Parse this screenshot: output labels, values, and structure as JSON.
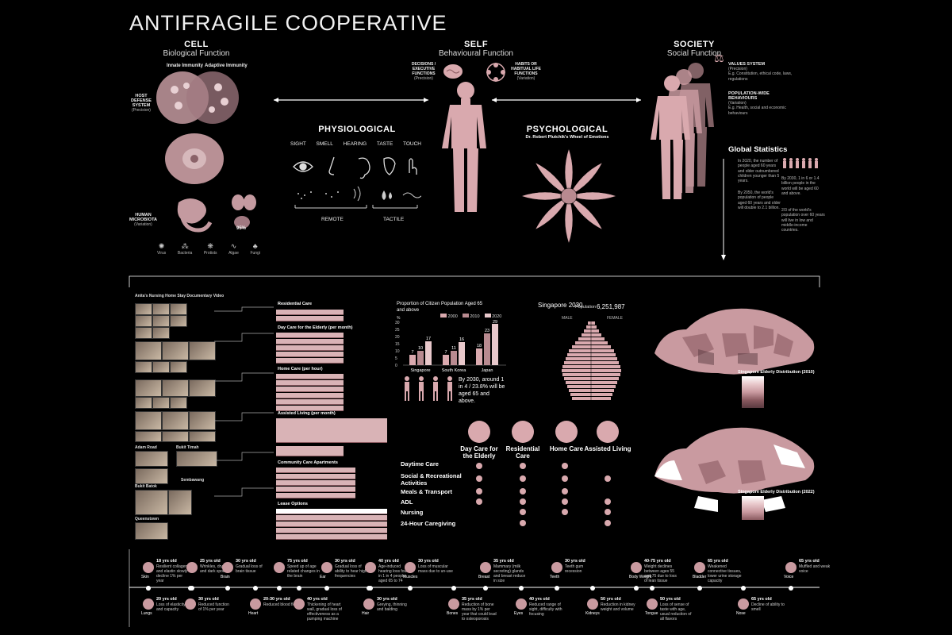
{
  "title": "ANTIFRAGILE COOPERATIVE",
  "cell": {
    "heading": "CELL",
    "subheading": "Biological Function",
    "innate": "Innate Immunity",
    "adaptive": "Adaptive Immunity",
    "host_defense": "HOST DEFENSE SYSTEM",
    "host_defense_sub": "(Precision)",
    "microbiota": "HUMAN MICROBIOTA",
    "microbiota_sub": "(Variation)",
    "microbes": [
      "Virus",
      "Bacteria",
      "Protists",
      "Algae",
      "Fungi"
    ],
    "percent": "95%"
  },
  "self": {
    "heading": "SELF",
    "subheading": "Behavioural Function",
    "decisions": "DECISIONS / EXECUTIVE FUNCTIONS",
    "decisions_sub": "(Precision)",
    "habits": "HABITS OR HABITUAL LIFE FUNCTIONS",
    "habits_sub": "(Variation)"
  },
  "society": {
    "heading": "SOCIETY",
    "subheading": "Social Function",
    "values": "VALUES SYSTEM",
    "values_sub": "(Precision)",
    "values_desc": "E.g. Constitution, ethical code, laws, regulations",
    "population": "POPULATION-WIDE BEHAVIOURS",
    "population_sub": "(Variation)",
    "population_desc": "E.g. Health, social and economic behaviours"
  },
  "physiological": {
    "heading": "PHYSIOLOGICAL",
    "senses": [
      "SIGHT",
      "SMELL",
      "HEARING",
      "TASTE",
      "TOUCH"
    ],
    "remote": "REMOTE",
    "tactile": "TACTILE"
  },
  "psychological": {
    "heading": "PSYCHOLOGICAL",
    "subheading": "Dr. Robert Plutchik's Wheel of Emotions"
  },
  "global_stats": {
    "heading": "Global Statistics",
    "fact1": "In 2020, the number of people aged 60 years and older outnumbered children younger than 5 years.",
    "fact2": "By 2030, 1 in 6 or 1.4 billion people in the world will be aged 60 and above.",
    "fact3": "By 2050, the world's population of people aged 60 years and older will double to 2.1 billion.",
    "fact4": "2/3 of the world's population over 60 years will live in low and middle-income countries."
  },
  "video": {
    "title": "Anita's Nursing Home Stay Documentary Video"
  },
  "locations": [
    "Adam Road",
    "Bukit Timah",
    "Sembawang",
    "Bukit Batok",
    "Queenstown"
  ],
  "tables": {
    "residential": "Residential Care",
    "daycare": "Day Care for the Elderly (per month)",
    "homecare": "Home Care (per hour)",
    "assisted": "Assisted Living (per month)",
    "community": "Community Care Apartments",
    "lease": "Lease Options"
  },
  "bar_chart": {
    "title": "Proportion of Citizen Population Aged 65 and above",
    "legend": [
      "2000",
      "2010",
      "2020"
    ],
    "ylabel": "%",
    "note": "By 2030, around 1 in 4 / 23.8% will be aged 65 and above."
  },
  "pyramid": {
    "title": "Singapore 2030",
    "population_label": "Population",
    "population": "6,251,987",
    "male": "MALE",
    "female": "FEMALE"
  },
  "maps": {
    "map1": "Singapore Elderly Distribution (2010)",
    "map2": "Singapore Elderly Distribution (2022)"
  },
  "care_types": [
    "Day Care for the Elderly",
    "Residential Care",
    "Home Care",
    "Assisted Living"
  ],
  "activities": [
    "Daytime Care",
    "Social & Recreational Activities",
    "Meals & Transport",
    "ADL",
    "Nursing",
    "24-Hour Caregiving"
  ],
  "timeline": {
    "top": [
      {
        "age": "18 yrs old",
        "organ": "Skin",
        "text": "Resilient collagen and elastin slowly decline 1% per year"
      },
      {
        "age": "25 yrs old",
        "organ": "",
        "text": "Wrinkles, dryness and dark spots"
      },
      {
        "age": "30 yrs old",
        "organ": "Brain",
        "text": "Gradual loss of brain tissue"
      },
      {
        "age": "75 yrs old",
        "organ": "",
        "text": "Speed up of age related changes in the brain"
      },
      {
        "age": "30 yrs old",
        "organ": "Ear",
        "text": "Gradual loss of ability to hear high frequencies"
      },
      {
        "age": "40 yrs old",
        "organ": "",
        "text": "Age-induced hearing loss found in 1 in 4 people aged 65 to 74"
      },
      {
        "age": "30 yrs old",
        "organ": "Muscles",
        "text": "Loss of muscular mass due to un-use"
      },
      {
        "age": "35 yrs old",
        "organ": "Breast",
        "text": "Mammary (milk secreting) glands and breast reduce in size"
      },
      {
        "age": "30 yrs old",
        "organ": "Teeth",
        "text": "Teeth gum recession"
      },
      {
        "age": "40-75 yrs old",
        "organ": "Body Weight",
        "text": "Weight declines between ages 55 and 75 due to loss of lean tissue"
      },
      {
        "age": "65 yrs old",
        "organ": "Bladder",
        "text": "Weakened connective tissues, lower urine storage capacity"
      },
      {
        "age": "65 yrs old",
        "organ": "Voice",
        "text": "Muffled and weak voice"
      }
    ],
    "bottom": [
      {
        "age": "20 yrs old",
        "organ": "Lungs",
        "text": "Loss of elasticity and capacity"
      },
      {
        "age": "30 yrs old",
        "organ": "",
        "text": "Reduced function of 1% per year"
      },
      {
        "age": "20-30 yrs old",
        "organ": "Heart",
        "text": "Reduced blood flow"
      },
      {
        "age": "40 yrs old",
        "organ": "",
        "text": "Thickening of heart wall, gradual loss of effectiveness as a pumping machine"
      },
      {
        "age": "30 yrs old",
        "organ": "Hair",
        "text": "Greying, thinning and balding"
      },
      {
        "age": "35 yrs old",
        "organ": "Bones",
        "text": "Reduction of bone mass by 1% per year that could lead to osteoporosis"
      },
      {
        "age": "40 yrs old",
        "organ": "Eyes",
        "text": "Reduced range of sight, difficulty with focusing"
      },
      {
        "age": "50 yrs old",
        "organ": "Kidneys",
        "text": "Reduction in kidney weight and volume"
      },
      {
        "age": "50 yrs old",
        "organ": "Tongue",
        "text": "Loss of sense of taste with age, usual reduction of all flavors"
      },
      {
        "age": "65 yrs old",
        "organ": "Nose",
        "text": "Decline of ability to smell"
      }
    ]
  }
}
